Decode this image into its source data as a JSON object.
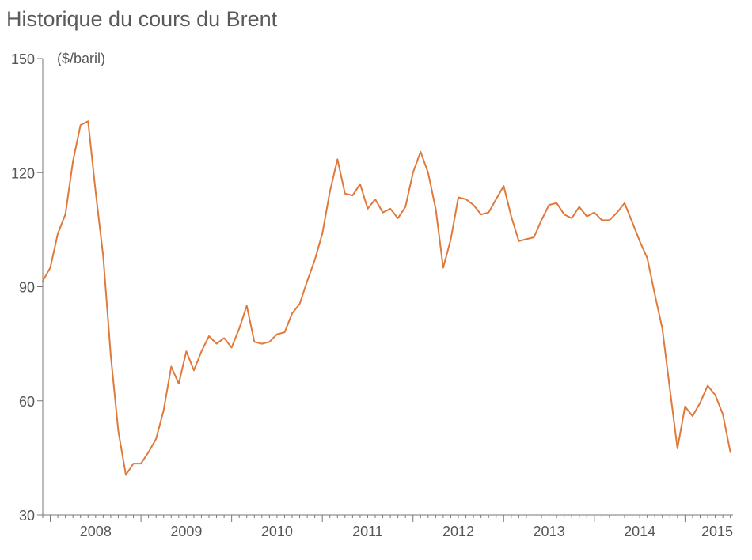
{
  "chart_data": {
    "type": "line",
    "title": "Historique du cours du Brent",
    "ylabel": "($/baril)",
    "xlabel": "",
    "ylim": [
      30,
      150
    ],
    "yticks": [
      30,
      60,
      90,
      120,
      150
    ],
    "year_labels": [
      "2008",
      "2009",
      "2010",
      "2011",
      "2012",
      "2013",
      "2014",
      "2015"
    ],
    "xlim": [
      "2007-12",
      "2015-03"
    ],
    "grid": false,
    "line_color": "#e07a3c",
    "series": [
      {
        "points": [
          [
            "2007-12",
            91.5
          ],
          [
            "2008-01",
            95.0
          ],
          [
            "2008-02",
            104.0
          ],
          [
            "2008-03",
            109.0
          ],
          [
            "2008-04",
            123.0
          ],
          [
            "2008-05",
            132.5
          ],
          [
            "2008-06",
            133.5
          ],
          [
            "2008-07",
            115.0
          ],
          [
            "2008-08",
            98.0
          ],
          [
            "2008-09",
            72.0
          ],
          [
            "2008-10",
            52.0
          ],
          [
            "2008-11",
            40.5
          ],
          [
            "2008-12",
            43.5
          ],
          [
            "2009-01",
            43.5
          ],
          [
            "2009-02",
            46.5
          ],
          [
            "2009-03",
            50.0
          ],
          [
            "2009-04",
            57.5
          ],
          [
            "2009-05",
            69.0
          ],
          [
            "2009-06",
            64.5
          ],
          [
            "2009-07",
            73.0
          ],
          [
            "2009-08",
            68.0
          ],
          [
            "2009-09",
            73.0
          ],
          [
            "2009-10",
            77.0
          ],
          [
            "2009-11",
            75.0
          ],
          [
            "2009-12",
            76.5
          ],
          [
            "2010-01",
            74.0
          ],
          [
            "2010-02",
            79.0
          ],
          [
            "2010-03",
            85.0
          ],
          [
            "2010-04",
            75.5
          ],
          [
            "2010-05",
            75.0
          ],
          [
            "2010-06",
            75.5
          ],
          [
            "2010-07",
            77.5
          ],
          [
            "2010-08",
            78.0
          ],
          [
            "2010-09",
            83.0
          ],
          [
            "2010-10",
            85.5
          ],
          [
            "2010-11",
            91.5
          ],
          [
            "2010-12",
            97.0
          ],
          [
            "2011-01",
            104.0
          ],
          [
            "2011-02",
            115.0
          ],
          [
            "2011-03",
            123.5
          ],
          [
            "2011-04",
            114.5
          ],
          [
            "2011-05",
            114.0
          ],
          [
            "2011-06",
            117.0
          ],
          [
            "2011-07",
            110.5
          ],
          [
            "2011-08",
            113.0
          ],
          [
            "2011-09",
            109.5
          ],
          [
            "2011-10",
            110.5
          ],
          [
            "2011-11",
            108.0
          ],
          [
            "2011-12",
            111.0
          ],
          [
            "2012-01",
            120.0
          ],
          [
            "2012-02",
            125.5
          ],
          [
            "2012-03",
            120.0
          ],
          [
            "2012-04",
            110.5
          ],
          [
            "2012-05",
            95.0
          ],
          [
            "2012-06",
            102.5
          ],
          [
            "2012-07",
            113.5
          ],
          [
            "2012-08",
            113.0
          ],
          [
            "2012-09",
            111.5
          ],
          [
            "2012-10",
            109.0
          ],
          [
            "2012-11",
            109.5
          ],
          [
            "2012-12",
            113.0
          ],
          [
            "2013-01",
            116.5
          ],
          [
            "2013-02",
            108.5
          ],
          [
            "2013-03",
            102.0
          ],
          [
            "2013-04",
            102.5
          ],
          [
            "2013-05",
            103.0
          ],
          [
            "2013-06",
            107.5
          ],
          [
            "2013-07",
            111.5
          ],
          [
            "2013-08",
            112.0
          ],
          [
            "2013-09",
            109.0
          ],
          [
            "2013-10",
            108.0
          ],
          [
            "2013-11",
            111.0
          ],
          [
            "2013-12",
            108.5
          ],
          [
            "2014-01",
            109.5
          ],
          [
            "2014-02",
            107.5
          ],
          [
            "2014-03",
            107.5
          ],
          [
            "2014-04",
            109.5
          ],
          [
            "2014-05",
            112.0
          ],
          [
            "2014-06",
            107.0
          ],
          [
            "2014-07",
            102.0
          ],
          [
            "2014-08",
            97.5
          ],
          [
            "2014-09",
            88.0
          ],
          [
            "2014-10",
            79.0
          ],
          [
            "2014-11",
            63.0
          ],
          [
            "2014-12",
            47.5
          ],
          [
            "2015-01",
            58.5
          ],
          [
            "2015-02",
            56.0
          ],
          [
            "2015-03",
            59.5
          ],
          [
            "2015-04",
            64.0
          ],
          [
            "2015-05",
            61.5
          ],
          [
            "2015-06",
            56.5
          ],
          [
            "2015-07",
            46.5
          ]
        ]
      }
    ]
  }
}
